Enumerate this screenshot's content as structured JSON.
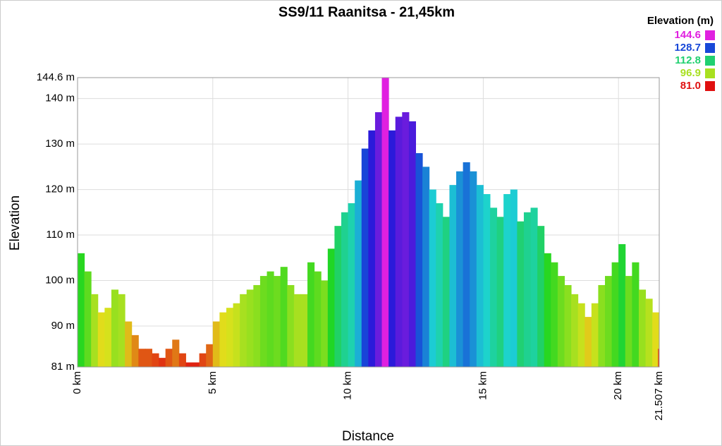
{
  "chart_data": {
    "type": "area",
    "title": "SS9/11 Raanitsa - 21,45km",
    "x_label": "Distance",
    "y_label": "Elevation",
    "legend_title": "Elevation (m)",
    "legend": [
      {
        "value": 144.6,
        "label": "144.6",
        "color": "#e020e0"
      },
      {
        "value": 128.7,
        "label": "128.7",
        "color": "#1848d8"
      },
      {
        "value": 112.8,
        "label": "112.8",
        "color": "#20d070"
      },
      {
        "value": 96.9,
        "label": "96.9",
        "color": "#a8e020"
      },
      {
        "value": 81.0,
        "label": "81.0",
        "color": "#e01010"
      }
    ],
    "grid": true,
    "xlim": [
      0,
      21.507
    ],
    "ylim": [
      81,
      144.6
    ],
    "xticks": [
      {
        "value": 0,
        "label": "0 km"
      },
      {
        "value": 5,
        "label": "5 km"
      },
      {
        "value": 10,
        "label": "10 km"
      },
      {
        "value": 15,
        "label": "15 km"
      },
      {
        "value": 20,
        "label": "20 km"
      },
      {
        "value": 21.507,
        "label": "21.507 km"
      }
    ],
    "yticks": [
      {
        "value": 81,
        "label": "81 m"
      },
      {
        "value": 90,
        "label": "90 m"
      },
      {
        "value": 100,
        "label": "100 m"
      },
      {
        "value": 110,
        "label": "110 m"
      },
      {
        "value": 120,
        "label": "120 m"
      },
      {
        "value": 130,
        "label": "130 m"
      },
      {
        "value": 140,
        "label": "140 m"
      },
      {
        "value": 144.6,
        "label": "144.6 m"
      }
    ],
    "x": [
      0,
      0.25,
      0.5,
      0.75,
      1,
      1.25,
      1.5,
      1.75,
      2,
      2.25,
      2.5,
      2.75,
      3,
      3.25,
      3.5,
      3.75,
      4,
      4.25,
      4.5,
      4.75,
      5,
      5.25,
      5.5,
      5.75,
      6,
      6.25,
      6.5,
      6.75,
      7,
      7.25,
      7.5,
      7.75,
      8,
      8.25,
      8.5,
      8.75,
      9,
      9.25,
      9.5,
      9.75,
      10,
      10.25,
      10.5,
      10.75,
      11,
      11.25,
      11.5,
      11.75,
      12,
      12.25,
      12.5,
      12.75,
      13,
      13.25,
      13.5,
      13.75,
      14,
      14.25,
      14.5,
      14.75,
      15,
      15.25,
      15.5,
      15.75,
      16,
      16.25,
      16.5,
      16.75,
      17,
      17.25,
      17.5,
      17.75,
      18,
      18.25,
      18.5,
      18.75,
      19,
      19.25,
      19.5,
      19.75,
      20,
      20.25,
      20.5,
      20.75,
      21,
      21.25,
      21.507
    ],
    "values": [
      106,
      102,
      97,
      93,
      94,
      98,
      97,
      91,
      88,
      85,
      85,
      84,
      83,
      85,
      87,
      84,
      82,
      82,
      84,
      86,
      91,
      93,
      94,
      95,
      97,
      98,
      99,
      101,
      102,
      101,
      103,
      99,
      97,
      97,
      104,
      102,
      100,
      107,
      112,
      115,
      117,
      122,
      129,
      133,
      137,
      144.6,
      133,
      136,
      137,
      135,
      128,
      125,
      120,
      117,
      114,
      121,
      124,
      126,
      124,
      121,
      119,
      116,
      114,
      119,
      120,
      113,
      115,
      116,
      112,
      106,
      104,
      101,
      99,
      97,
      95,
      92,
      95,
      99,
      101,
      104,
      108,
      101,
      104,
      98,
      96,
      93,
      85
    ]
  }
}
